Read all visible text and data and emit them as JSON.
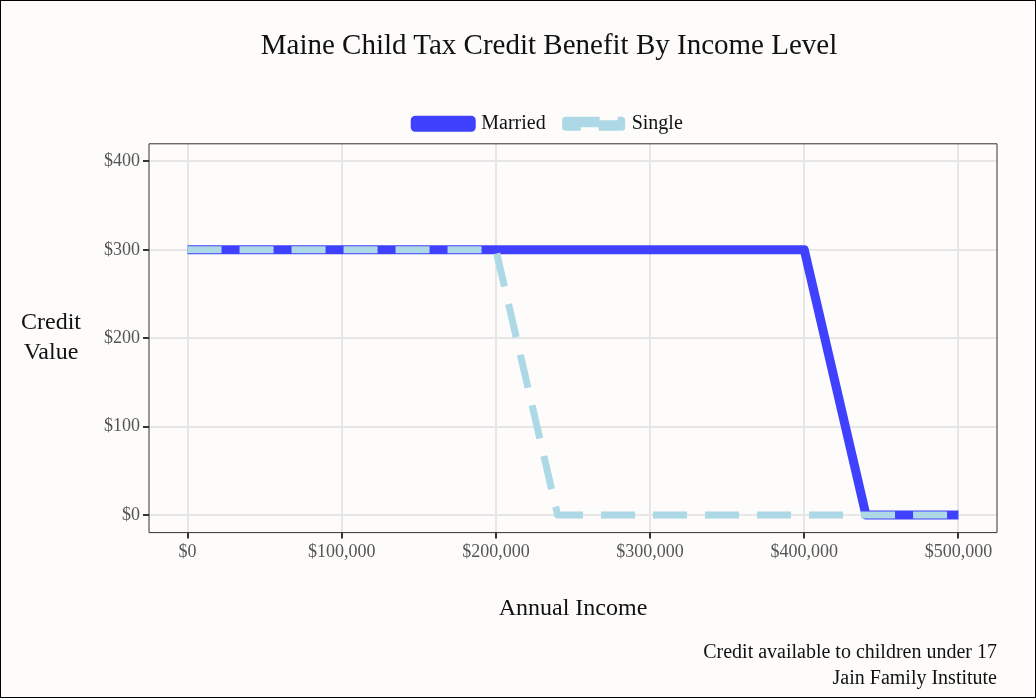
{
  "chart_data": {
    "type": "line",
    "title": "Maine Child Tax Credit Benefit By Income Level",
    "xlabel": "Annual Income",
    "ylabel": "Credit Value",
    "xlim": [
      -25000,
      525000
    ],
    "xticks": [
      {
        "value": 0,
        "label": "$0"
      },
      {
        "value": 100000,
        "label": "$100,000"
      },
      {
        "value": 200000,
        "label": "$200,000"
      },
      {
        "value": 300000,
        "label": "$300,000"
      },
      {
        "value": 400000,
        "label": "$400,000"
      },
      {
        "value": 500000,
        "label": "$500,000"
      }
    ],
    "ylim": [
      -20,
      420
    ],
    "yticks": [
      {
        "value": 0,
        "label": "$0"
      },
      {
        "value": 100,
        "label": "$100"
      },
      {
        "value": 200,
        "label": "$200"
      },
      {
        "value": 300,
        "label": "$300"
      },
      {
        "value": 400,
        "label": "$400"
      }
    ],
    "series": [
      {
        "name": "Married",
        "color": "#4040ff",
        "x": [
          0,
          400000,
          440000,
          500000
        ],
        "values": [
          300,
          300,
          0,
          0
        ],
        "line_style": "solid"
      },
      {
        "name": "Single",
        "color": "#add8e6",
        "x": [
          0,
          200000,
          240000,
          500000
        ],
        "values": [
          300,
          300,
          0,
          0
        ],
        "line_style": "dashed"
      }
    ],
    "grid": true,
    "legend": "top",
    "marker": "none",
    "annotations": [
      "Credit available to children under 17",
      "Jain Family Institute"
    ]
  }
}
